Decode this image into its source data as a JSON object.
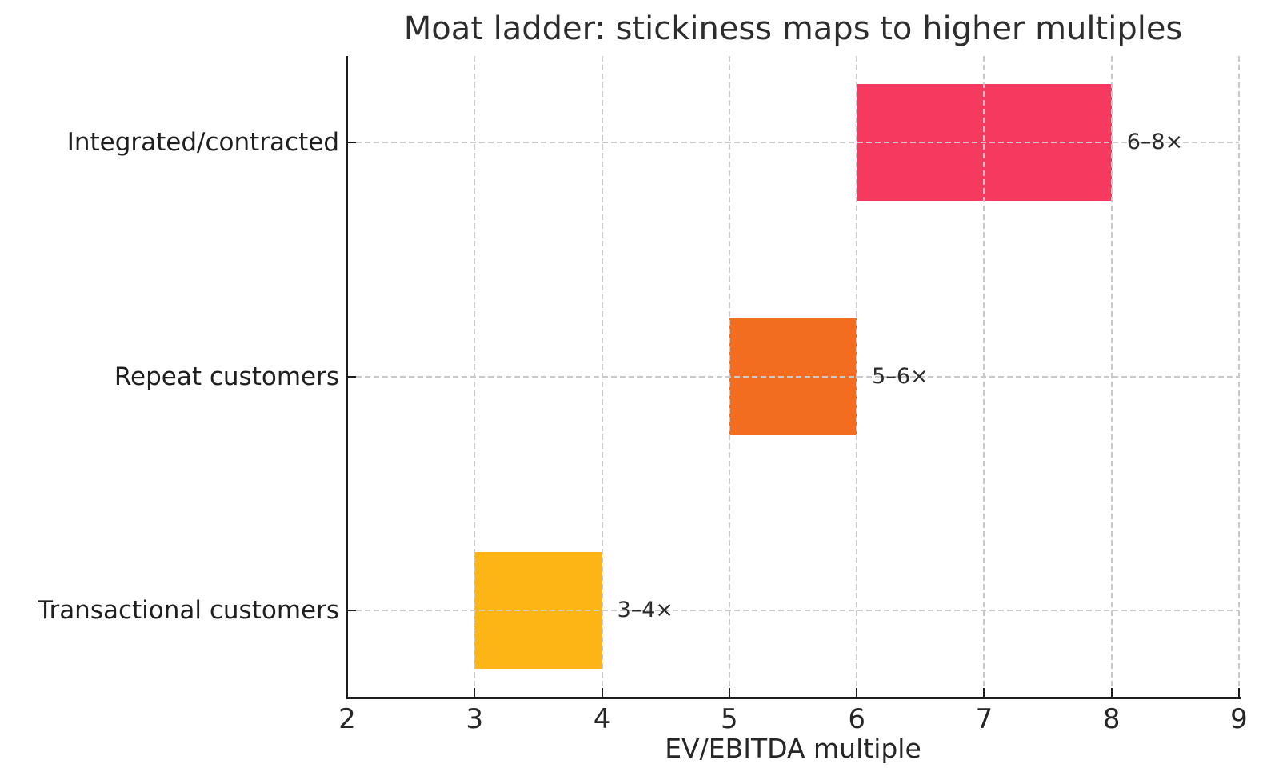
{
  "chart_data": {
    "type": "bar",
    "orientation": "horizontal",
    "title": "Moat ladder: stickiness maps to higher multiples",
    "xlabel": "EV/EBITDA multiple",
    "ylabel": "",
    "xlim": [
      2,
      9
    ],
    "xticks": [
      2,
      3,
      4,
      5,
      6,
      7,
      8,
      9
    ],
    "grid": "dashed gridlines on both axes, drawn above bars",
    "legend": "none",
    "bar_thickness_fraction": 0.5,
    "rows": [
      {
        "category": "Integrated/contracted",
        "range_start": 6,
        "range_end": 8,
        "annotation": "6–8×",
        "color": "#F5395F"
      },
      {
        "category": "Repeat customers",
        "range_start": 5,
        "range_end": 6,
        "annotation": "5–6×",
        "color": "#F26D1F"
      },
      {
        "category": "Transactional customers",
        "range_start": 3,
        "range_end": 4,
        "annotation": "3–4×",
        "color": "#FDB515"
      }
    ],
    "colors": {
      "grid": "#c9c9c9",
      "axis": "#1c1c1c",
      "text": "#262626",
      "background": "#ffffff"
    }
  }
}
